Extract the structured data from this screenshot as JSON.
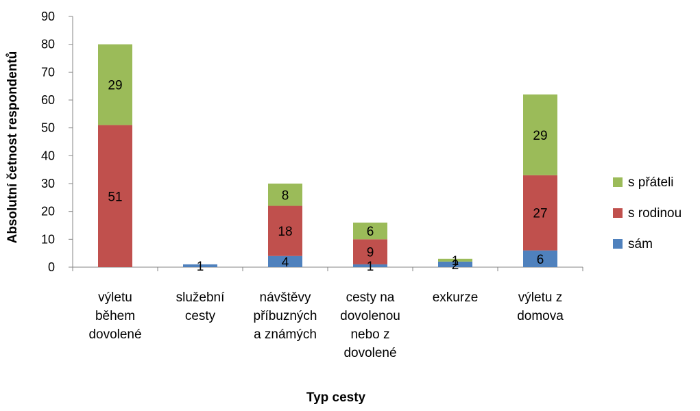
{
  "chart_data": {
    "type": "bar",
    "stacked": true,
    "xlabel": "Typ cesty",
    "ylabel": "Absolutní četnost respondentů",
    "ylim": [
      0,
      90
    ],
    "ytick_step": 10,
    "grid": false,
    "legend_position": "right",
    "categories": [
      [
        "výletu",
        "během",
        "dovolené"
      ],
      [
        "služební",
        "cesty"
      ],
      [
        "návštěvy",
        "příbuzných",
        "a známých"
      ],
      [
        "cesty na",
        "dovolenou",
        "nebo z",
        "dovolené"
      ],
      [
        "exkurze"
      ],
      [
        "výletu z",
        "domova"
      ]
    ],
    "series": [
      {
        "name": "sám",
        "color": "#4F81BD",
        "values": [
          0,
          1,
          4,
          1,
          2,
          6
        ],
        "labels": [
          "",
          "1",
          "4",
          "1",
          "2",
          "6"
        ]
      },
      {
        "name": "s rodinou",
        "color": "#C0504D",
        "values": [
          51,
          0,
          18,
          9,
          0,
          27
        ],
        "labels": [
          "51",
          "",
          "18",
          "9",
          "",
          "27"
        ]
      },
      {
        "name": "s přáteli",
        "color": "#9BBB59",
        "values": [
          29,
          0,
          8,
          6,
          1,
          29
        ],
        "labels": [
          "29",
          "",
          "8",
          "6",
          "1",
          "29"
        ]
      }
    ]
  }
}
